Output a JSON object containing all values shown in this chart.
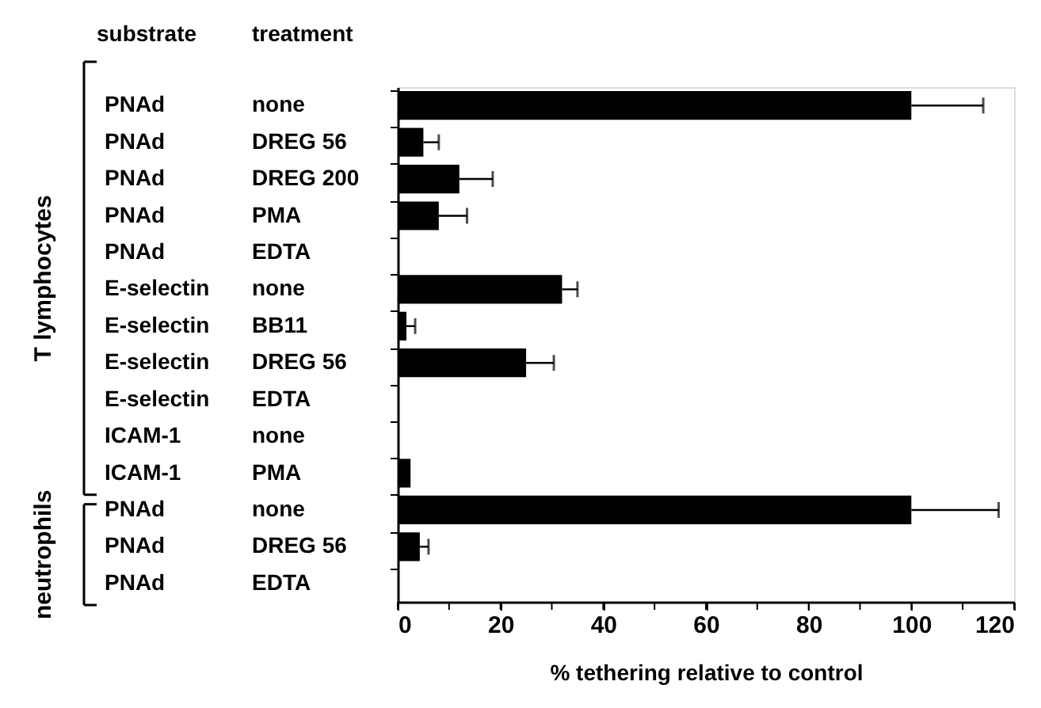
{
  "chart_data": {
    "type": "bar",
    "orientation": "horizontal",
    "xlabel": "% tethering relative to control",
    "categories": [
      "PNAd none",
      "PNAd DREG 56",
      "PNAd DREG 200",
      "PNAd PMA",
      "PNAd EDTA",
      "E-selectin none",
      "E-selectin BB11",
      "E-selectin DREG 56",
      "E-selectin EDTA",
      "ICAM-1 none",
      "ICAM-1 PMA",
      "PNAd none",
      "PNAd DREG 56",
      "PNAd EDTA"
    ],
    "values": [
      100,
      5,
      12,
      8,
      0,
      32,
      1.7,
      25,
      0,
      0,
      2.5,
      100,
      4.3,
      0
    ],
    "errors": [
      [
        100,
        114
      ],
      [
        5,
        8
      ],
      [
        12,
        18.5
      ],
      [
        8,
        13.5
      ],
      null,
      [
        32,
        35
      ],
      [
        1.7,
        3.4
      ],
      [
        25,
        30.4
      ],
      null,
      null,
      null,
      [
        100,
        117
      ],
      [
        4.3,
        6
      ],
      null
    ],
    "color": "#000000",
    "xlim": [
      0,
      120
    ],
    "xticks": [
      0,
      {
        "value": 10,
        "label": null
      },
      20,
      {
        "value": 30,
        "label": null
      },
      40,
      {
        "value": 50,
        "label": null
      },
      60,
      {
        "value": 70,
        "label": null
      },
      80,
      {
        "value": 90,
        "label": null
      },
      100,
      {
        "value": 110,
        "label": null
      },
      120
    ],
    "annotations": [
      "substrate",
      "treatment",
      "T lymphocytes",
      "neutrophils"
    ],
    "grid": false
  }
}
